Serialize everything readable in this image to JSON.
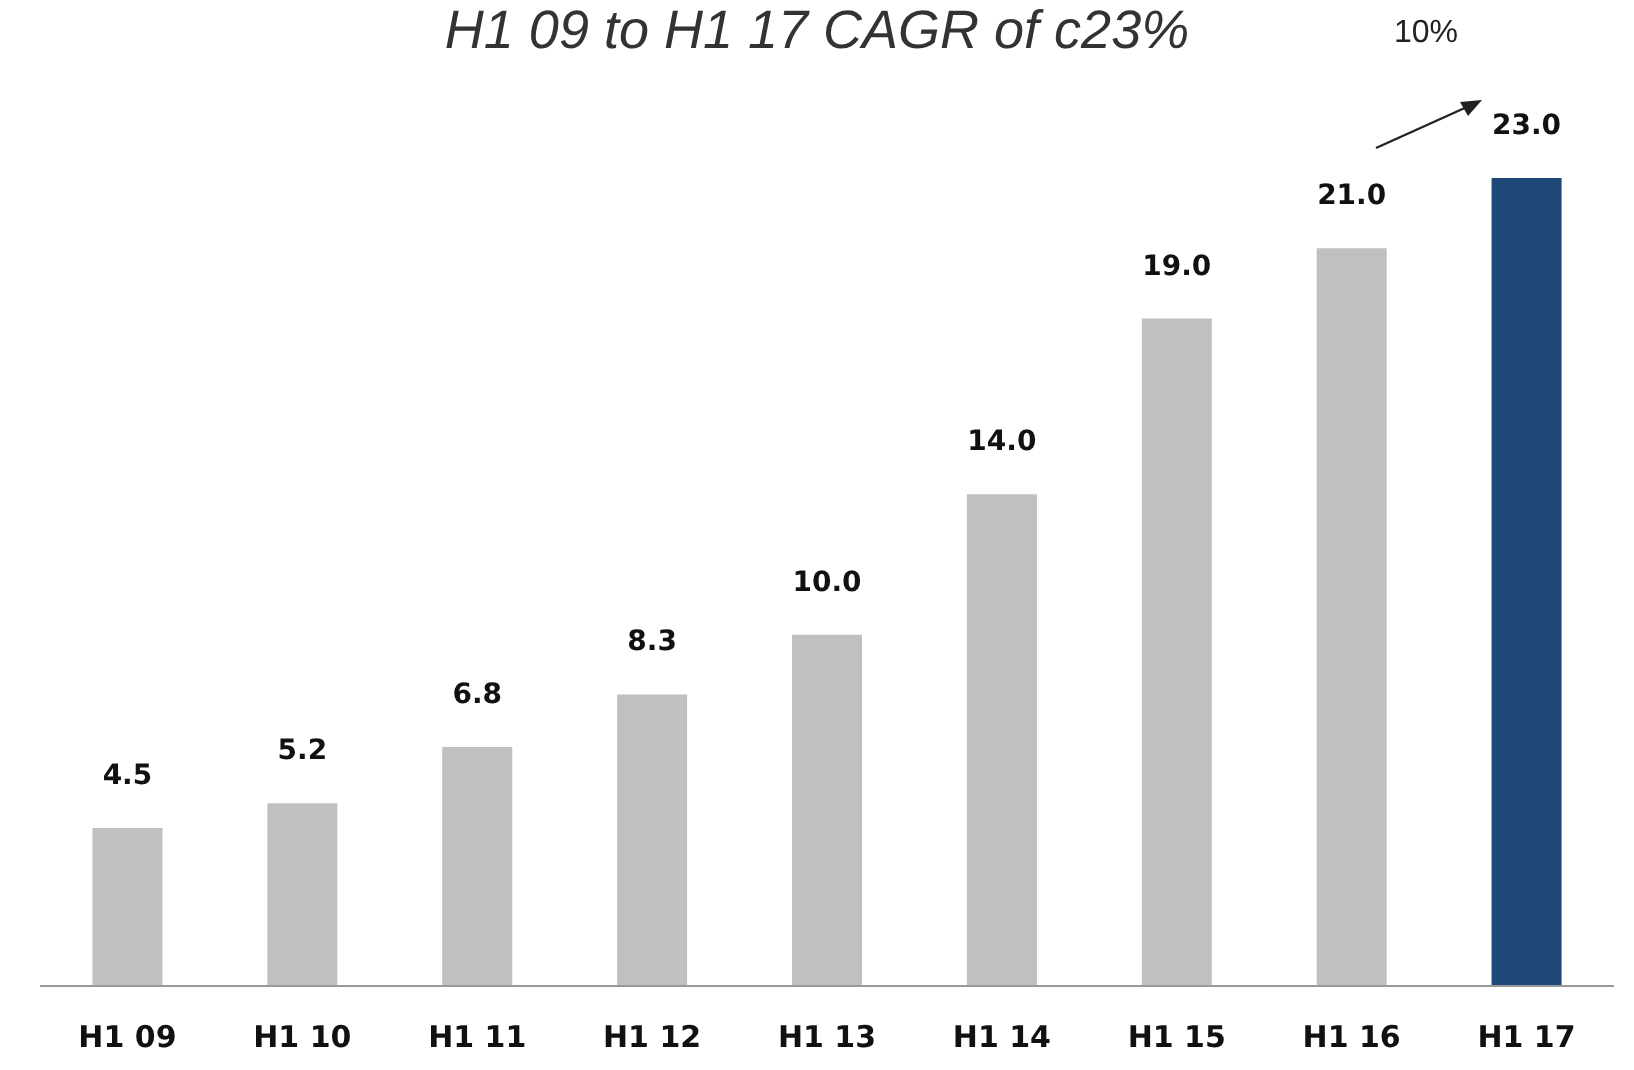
{
  "chart_data": {
    "type": "bar",
    "title": "H1 09 to H1 17 CAGR of c23%",
    "categories": [
      "H1 09",
      "H1 10",
      "H1 11",
      "H1 12",
      "H1 13",
      "H1 14",
      "H1 15",
      "H1 16",
      "H1 17"
    ],
    "values": [
      4.5,
      5.2,
      6.8,
      8.3,
      10.0,
      14.0,
      19.0,
      21.0,
      23.0
    ],
    "value_labels": [
      "4.5",
      "5.2",
      "6.8",
      "8.3",
      "10.0",
      "14.0",
      "19.0",
      "21.0",
      "23.0"
    ],
    "colors": [
      "#c0c0c0",
      "#c0c0c0",
      "#c0c0c0",
      "#c0c0c0",
      "#c0c0c0",
      "#c0c0c0",
      "#c0c0c0",
      "#c0c0c0",
      "#1f4778"
    ],
    "annotations": [
      "10%"
    ],
    "tick_labels": "x"
  }
}
